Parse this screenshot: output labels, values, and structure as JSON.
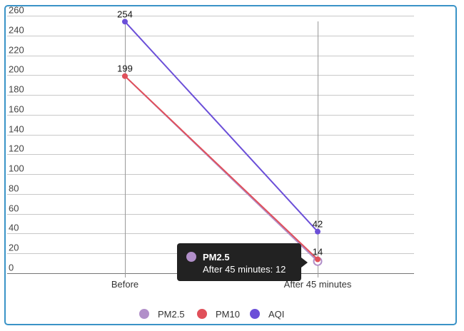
{
  "chart_data": {
    "type": "line",
    "categories": [
      "Before",
      "After 45 minutes"
    ],
    "ylim": [
      0,
      260
    ],
    "y_ticks": [
      0,
      20,
      40,
      60,
      80,
      100,
      120,
      140,
      160,
      180,
      200,
      220,
      240,
      260
    ],
    "grid": true,
    "legend_position": "bottom",
    "series": [
      {
        "name": "PM2.5",
        "values": [
          199,
          12
        ],
        "color": "#b18fc9"
      },
      {
        "name": "PM10",
        "values": [
          199,
          14
        ],
        "color": "#e0505a"
      },
      {
        "name": "AQI",
        "values": [
          254,
          42
        ],
        "color": "#6b4fd8"
      }
    ],
    "data_labels": [
      {
        "series": "AQI",
        "category": "Before",
        "text": "254"
      },
      {
        "series": "PM10",
        "category": "Before",
        "text": "199"
      },
      {
        "series": "AQI",
        "category": "After 45 minutes",
        "text": "42"
      },
      {
        "series": "PM10",
        "category": "After 45 minutes",
        "text": "14"
      }
    ],
    "tooltip": {
      "series": "PM2.5",
      "category": "After 45 minutes",
      "title": "PM2.5",
      "text": "After 45 minutes: 12"
    }
  }
}
